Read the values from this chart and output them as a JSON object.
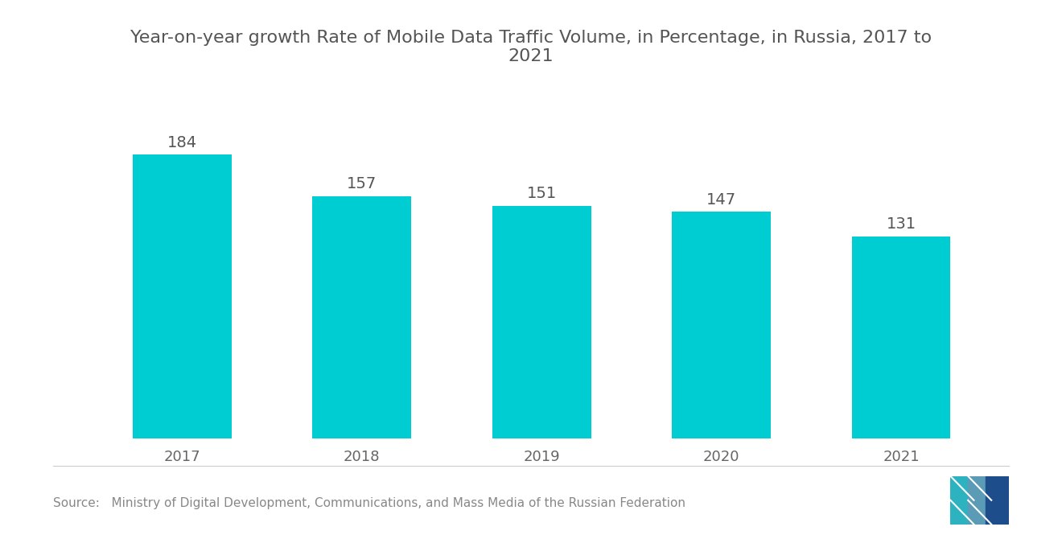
{
  "title": "Year-on-year growth Rate of Mobile Data Traffic Volume, in Percentage, in Russia, 2017 to\n2021",
  "categories": [
    "2017",
    "2018",
    "2019",
    "2020",
    "2021"
  ],
  "values": [
    184,
    157,
    151,
    147,
    131
  ],
  "bar_color": "#00CDD1",
  "value_label_color": "#555555",
  "title_color": "#555555",
  "xlabel_color": "#666666",
  "background_color": "#ffffff",
  "source_text": "Source:   Ministry of Digital Development, Communications, and Mass Media of the Russian Federation",
  "source_bold": "Source:",
  "source_color": "#888888",
  "ylim": [
    0,
    215
  ],
  "bar_width": 0.55,
  "title_fontsize": 16,
  "label_fontsize": 14,
  "tick_fontsize": 13,
  "source_fontsize": 11
}
